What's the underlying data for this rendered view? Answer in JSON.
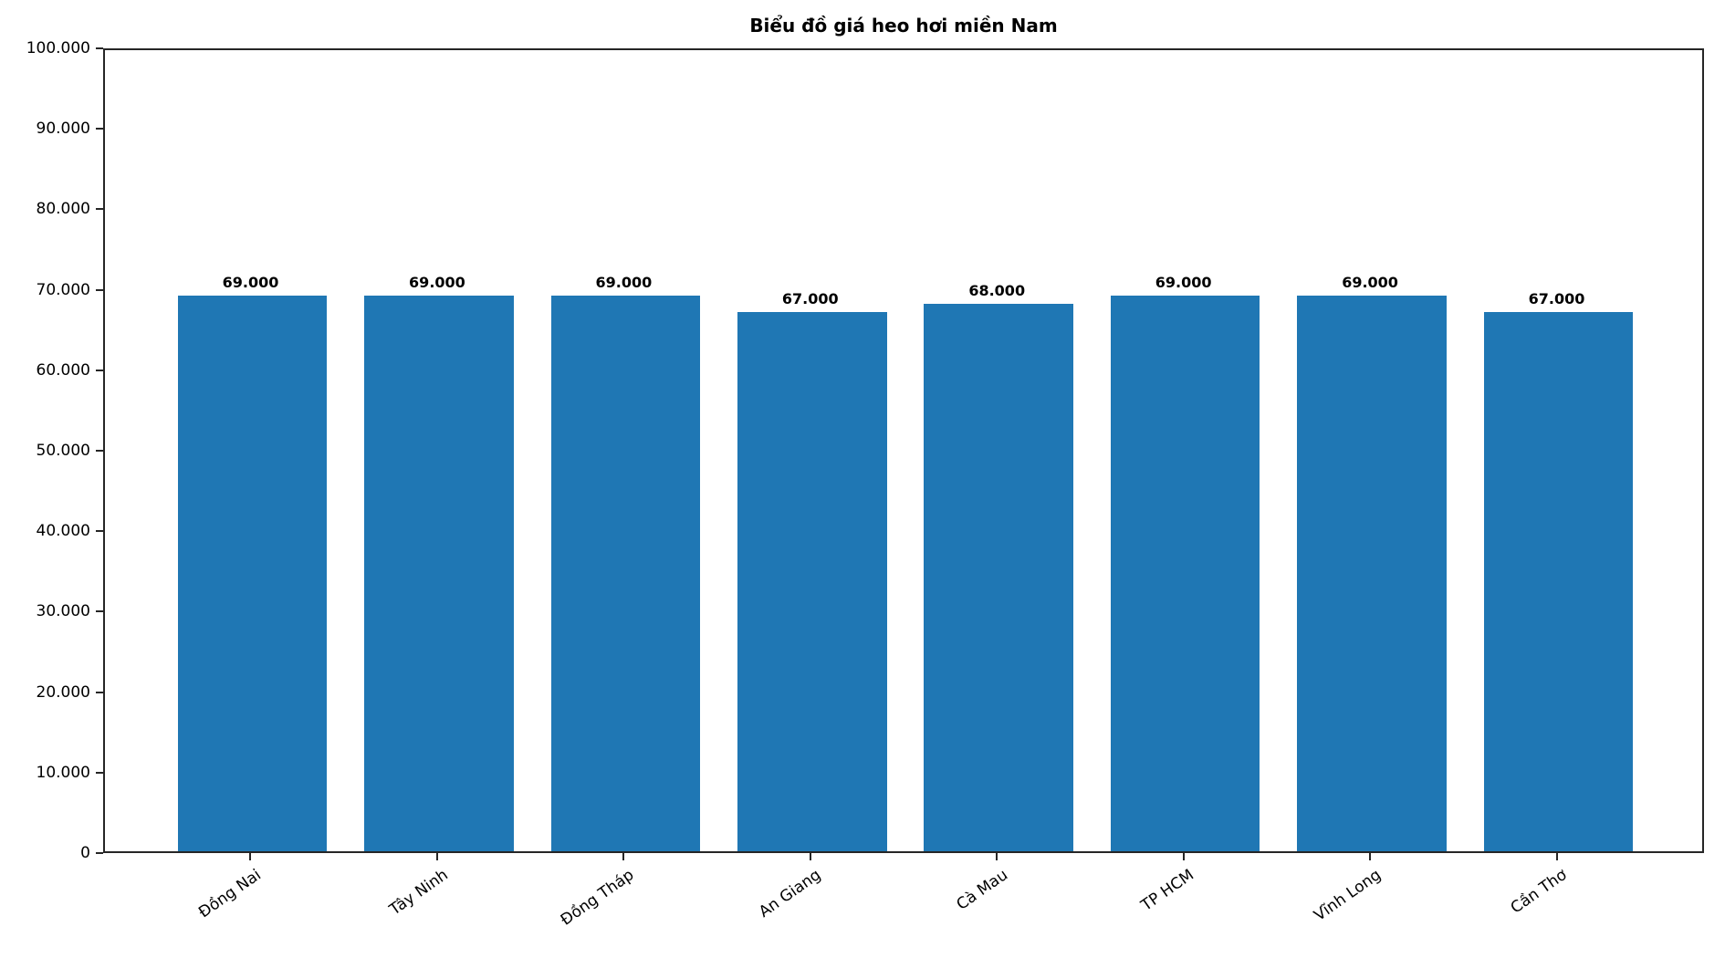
{
  "chart_data": {
    "type": "bar",
    "title": "Biểu đồ giá heo hơi miền Nam",
    "categories": [
      "Đồng Nai",
      "Tây Ninh",
      "Đồng Tháp",
      "An Giang",
      "Cà Mau",
      "TP HCM",
      "Vĩnh Long",
      "Cần Thơ"
    ],
    "values": [
      69000,
      69000,
      69000,
      67000,
      68000,
      69000,
      69000,
      67000
    ],
    "value_labels": [
      "69.000",
      "69.000",
      "69.000",
      "67.000",
      "68.000",
      "69.000",
      "69.000",
      "67.000"
    ],
    "xlabel": "",
    "ylabel": "",
    "ylim": [
      0,
      100000
    ],
    "yticks": [
      0,
      10000,
      20000,
      30000,
      40000,
      50000,
      60000,
      70000,
      80000,
      90000,
      100000
    ],
    "ytick_labels": [
      "0",
      "10.000",
      "20.000",
      "30.000",
      "40.000",
      "50.000",
      "60.000",
      "70.000",
      "80.000",
      "90.000",
      "100.000"
    ],
    "bar_color": "#1f77b4",
    "frame_color": "#262626",
    "text_color": "#000000",
    "grid": false,
    "legend": null,
    "bar_width_fraction": 0.8,
    "x_margin_fraction": 0.05,
    "xtick_rotation_deg": 35
  }
}
